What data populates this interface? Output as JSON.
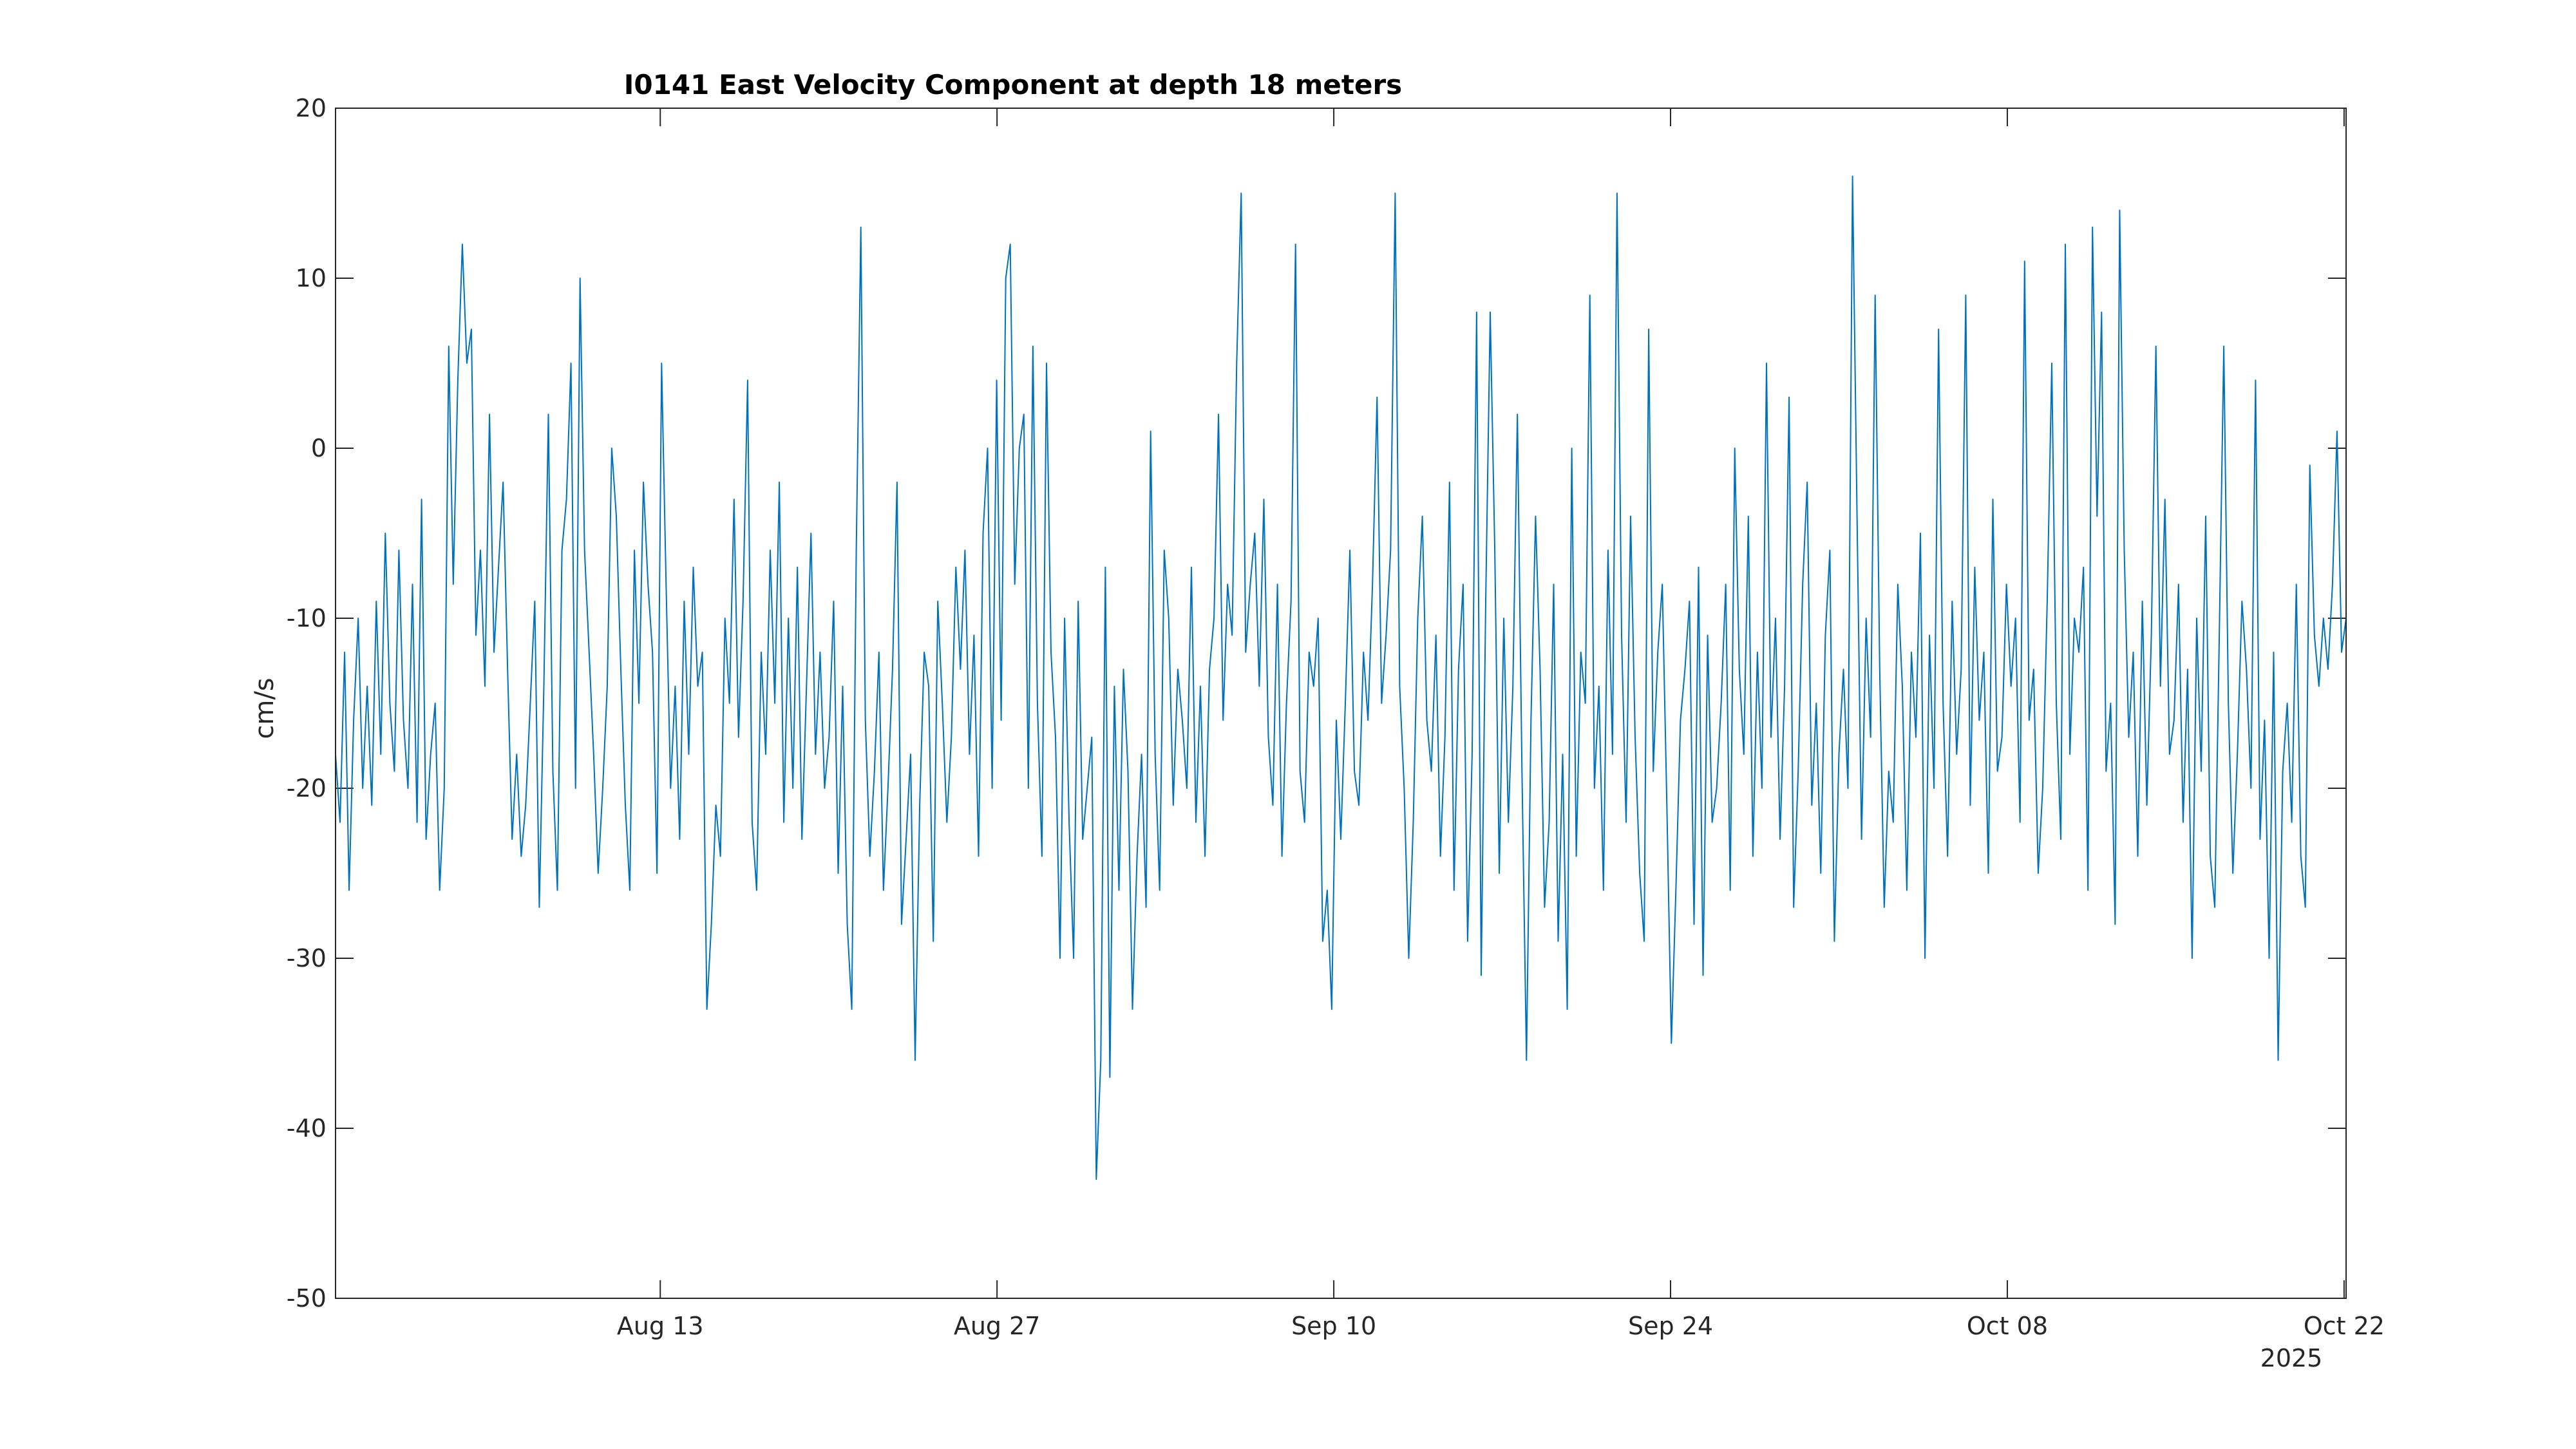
{
  "chart_data": {
    "type": "line",
    "title": "I0141 East Velocity Component at depth 18 meters",
    "ylabel": "cm/s",
    "xlabel": "",
    "xlim": [
      "2025-07-30T12:00",
      "2025-10-22T02:00"
    ],
    "ylim": [
      -50,
      20
    ],
    "yticks": [
      -50,
      -40,
      -30,
      -20,
      -10,
      0,
      10,
      20
    ],
    "ytick_labels": [
      "-50",
      "-40",
      "-30",
      "-20",
      "-10",
      "0",
      "10",
      "20"
    ],
    "xticks": [
      "2025-08-13",
      "2025-08-27",
      "2025-09-10",
      "2025-09-24",
      "2025-10-08",
      "2025-10-22"
    ],
    "xtick_labels": [
      "Aug 13",
      "Aug 27",
      "Sep 10",
      "Sep 24",
      "Oct 08",
      "Oct 22"
    ],
    "x_secondary_label": "2025",
    "grid": false,
    "legend": "none",
    "series_color": "#0072BD",
    "series": [
      {
        "x_start": "2025-07-30T12:00",
        "x_end": "2025-10-22T02:00",
        "values": [
          -18,
          -22,
          -12,
          -26,
          -16,
          -10,
          -20,
          -14,
          -21,
          -9,
          -18,
          -5,
          -15,
          -19,
          -6,
          -16,
          -20,
          -8,
          -22,
          -3,
          -23,
          -18,
          -15,
          -26,
          -20,
          6,
          -8,
          4,
          12,
          5,
          7,
          -11,
          -6,
          -14,
          2,
          -12,
          -7,
          -2,
          -13,
          -23,
          -18,
          -24,
          -21,
          -15,
          -9,
          -27,
          -14,
          2,
          -19,
          -26,
          -6,
          -3,
          5,
          -20,
          10,
          -6,
          -12,
          -18,
          -25,
          -20,
          -14,
          0,
          -4,
          -13,
          -21,
          -26,
          -6,
          -15,
          -2,
          -8,
          -12,
          -25,
          5,
          -8,
          -20,
          -14,
          -23,
          -9,
          -18,
          -7,
          -14,
          -12,
          -33,
          -28,
          -21,
          -24,
          -10,
          -15,
          -3,
          -17,
          -9,
          4,
          -22,
          -26,
          -12,
          -18,
          -6,
          -15,
          -2,
          -22,
          -10,
          -20,
          -7,
          -23,
          -14,
          -5,
          -18,
          -12,
          -20,
          -17,
          -9,
          -25,
          -14,
          -28,
          -33,
          -6,
          13,
          -16,
          -24,
          -19,
          -12,
          -26,
          -20,
          -13,
          -2,
          -28,
          -23,
          -18,
          -36,
          -21,
          -12,
          -14,
          -29,
          -9,
          -15,
          -22,
          -17,
          -7,
          -13,
          -6,
          -18,
          -11,
          -24,
          -5,
          0,
          -20,
          4,
          -16,
          10,
          12,
          -8,
          0,
          2,
          -20,
          6,
          -15,
          -24,
          5,
          -12,
          -17,
          -30,
          -10,
          -22,
          -30,
          -9,
          -23,
          -20,
          -17,
          -43,
          -36,
          -7,
          -37,
          -14,
          -26,
          -13,
          -19,
          -33,
          -24,
          -18,
          -27,
          1,
          -18,
          -26,
          -6,
          -10,
          -21,
          -13,
          -16,
          -20,
          -7,
          -22,
          -14,
          -24,
          -13,
          -10,
          2,
          -16,
          -8,
          -11,
          5,
          15,
          -12,
          -8,
          -5,
          -14,
          -3,
          -17,
          -21,
          -8,
          -24,
          -15,
          -9,
          12,
          -19,
          -22,
          -12,
          -14,
          -10,
          -29,
          -26,
          -33,
          -16,
          -23,
          -15,
          -6,
          -19,
          -21,
          -12,
          -16,
          -8,
          3,
          -15,
          -11,
          -6,
          15,
          -14,
          -20,
          -30,
          -22,
          -10,
          -4,
          -16,
          -19,
          -11,
          -24,
          -17,
          -2,
          -26,
          -13,
          -8,
          -29,
          -18,
          8,
          -31,
          -9,
          8,
          -6,
          -25,
          -10,
          -22,
          -14,
          2,
          -19,
          -36,
          -16,
          -4,
          -13,
          -27,
          -22,
          -8,
          -29,
          -18,
          -33,
          0,
          -24,
          -12,
          -15,
          9,
          -20,
          -14,
          -26,
          -6,
          -18,
          15,
          -11,
          -22,
          -4,
          -17,
          -25,
          -29,
          7,
          -19,
          -12,
          -8,
          -21,
          -35,
          -26,
          -16,
          -13,
          -9,
          -28,
          -7,
          -31,
          -11,
          -22,
          -20,
          -15,
          -8,
          -26,
          0,
          -13,
          -18,
          -4,
          -24,
          -12,
          -20,
          5,
          -17,
          -10,
          -23,
          -14,
          3,
          -27,
          -19,
          -8,
          -2,
          -21,
          -15,
          -25,
          -11,
          -6,
          -29,
          -18,
          -13,
          -20,
          16,
          -4,
          -23,
          -10,
          -17,
          9,
          -13,
          -27,
          -19,
          -22,
          -8,
          -14,
          -26,
          -12,
          -17,
          -5,
          -30,
          -11,
          -20,
          7,
          -15,
          -24,
          -9,
          -18,
          -13,
          9,
          -21,
          -7,
          -16,
          -12,
          -25,
          -3,
          -19,
          -17,
          -8,
          -14,
          -10,
          -22,
          11,
          -16,
          -13,
          -25,
          -20,
          -9,
          5,
          -15,
          -23,
          12,
          -18,
          -10,
          -12,
          -7,
          -26,
          13,
          -4,
          8,
          -19,
          -15,
          -28,
          14,
          -6,
          -17,
          -12,
          -24,
          -9,
          -21,
          -11,
          6,
          -14,
          -3,
          -18,
          -16,
          -8,
          -22,
          -13,
          -30,
          -10,
          -19,
          -4,
          -24,
          -27,
          -11,
          6,
          -15,
          -25,
          -18,
          -9,
          -13,
          -20,
          4,
          -23,
          -16,
          -30,
          -12,
          -36,
          -19,
          -15,
          -22,
          -8,
          -24,
          -27,
          -1,
          -11,
          -14,
          -10,
          -13,
          -8,
          1,
          -12,
          -10
        ]
      }
    ]
  }
}
